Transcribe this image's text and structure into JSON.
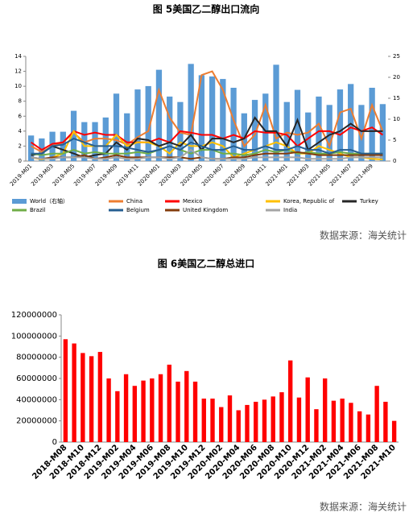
{
  "chart_data": [
    {
      "type": "combo",
      "title": "图 5美国乙二醇出口流向",
      "categories": [
        "2019-M01",
        null,
        "2019-M03",
        null,
        "2019-M05",
        null,
        "2019-M07",
        null,
        "2019-M09",
        null,
        "2019-M11",
        null,
        "2020-M01",
        null,
        "2020-M03",
        null,
        "2020-M05",
        null,
        "2020-M07",
        null,
        "2020-M09",
        null,
        "2020-M11",
        null,
        "2021-M01",
        null,
        "2021-M03",
        null,
        "2021-M05",
        null,
        "2021-M07",
        null,
        "2021-M09",
        null
      ],
      "ylim": [
        0,
        14
      ],
      "yticks": [
        0,
        2,
        4,
        6,
        8,
        10,
        12,
        14
      ],
      "y2lim": [
        0,
        25
      ],
      "y2ticks": [
        0,
        5,
        10,
        15,
        20,
        25
      ],
      "series": [
        {
          "name": "World（右轴）",
          "type": "bar",
          "axis": "y2",
          "color": "#5b9bd5",
          "values": [
            6.1,
            5.4,
            7.0,
            7.0,
            12.0,
            9.3,
            9.3,
            10.4,
            16.1,
            11.4,
            17.1,
            17.9,
            21.8,
            15.4,
            14.1,
            23.2,
            20.5,
            20.2,
            19.6,
            17.5,
            11.4,
            14.6,
            16.1,
            23.0,
            14.1,
            17.0,
            11.6,
            15.4,
            13.4,
            17.1,
            18.4,
            13.4,
            17.5,
            13.6
          ]
        },
        {
          "name": "China",
          "type": "line",
          "color": "#ed7d31",
          "values": [
            2,
            1.2,
            2,
            2.5,
            3.8,
            2.5,
            3,
            3,
            2.8,
            2.2,
            3.2,
            4,
            9.5,
            5.8,
            3.8,
            3.5,
            11.5,
            12,
            9.5,
            5.5,
            2,
            3.5,
            7.5,
            3,
            3.8,
            3.5,
            3.8,
            5,
            2,
            6.5,
            7,
            3,
            7.5,
            4
          ]
        },
        {
          "name": "Mexico",
          "type": "line",
          "color": "#ff0000",
          "values": [
            2.5,
            1.5,
            2.3,
            2.5,
            4,
            3.5,
            3.8,
            3.5,
            3.5,
            2.5,
            2.5,
            2.5,
            3,
            2.5,
            4,
            3.8,
            3.5,
            3.5,
            3,
            3.5,
            3,
            4,
            3.8,
            3.8,
            3.5,
            2,
            3,
            4,
            4,
            3.5,
            4.5,
            4,
            4.5,
            3.5
          ]
        },
        {
          "name": "Korea, Republic of",
          "type": "line",
          "color": "#ffc000",
          "values": [
            0.5,
            0.2,
            0.5,
            1,
            4,
            2,
            2,
            2,
            3.5,
            2,
            2.5,
            2.5,
            2,
            1,
            2.5,
            2,
            2,
            2.5,
            2,
            0.5,
            1,
            1.5,
            2,
            2.5,
            2,
            1,
            1,
            2,
            1.5,
            1,
            0.5,
            0.5,
            0.3,
            0.2
          ]
        },
        {
          "name": "Turkey",
          "type": "line",
          "color": "#262626",
          "values": [
            0.8,
            1,
            2,
            1.5,
            1,
            0.5,
            0.8,
            1,
            2.5,
            1.5,
            3,
            2.8,
            2,
            2.5,
            2,
            3.5,
            1.5,
            3,
            3,
            2.5,
            3,
            5.8,
            4,
            4,
            2,
            5.5,
            1.5,
            2.5,
            3.5,
            4,
            5,
            4,
            4,
            4
          ]
        },
        {
          "name": "Brazil",
          "type": "line",
          "color": "#70ad47",
          "values": [
            1,
            0.8,
            1,
            1,
            1.5,
            1,
            1.2,
            1,
            1,
            1,
            1.2,
            1,
            1.5,
            2,
            1.5,
            1,
            1.5,
            1.5,
            1,
            1,
            0.8,
            1,
            1.5,
            1.2,
            1.5,
            1,
            1.2,
            1,
            1,
            1.2,
            1,
            1,
            1,
            1
          ]
        },
        {
          "name": "Belgium",
          "type": "line",
          "color": "#255e91",
          "values": [
            1,
            1,
            2,
            2.2,
            3,
            2.5,
            2,
            2,
            2,
            1.8,
            1.5,
            1.2,
            1.5,
            2,
            1.5,
            2.5,
            2,
            1.5,
            1.5,
            2,
            1.5,
            1.5,
            2,
            1.5,
            1.5,
            2,
            1.5,
            1.5,
            1,
            1.5,
            1.5,
            1,
            1,
            1
          ]
        },
        {
          "name": "United Kingdom",
          "type": "line",
          "color": "#843c0c",
          "values": [
            0.5,
            0.3,
            0.5,
            0.5,
            0.5,
            0.8,
            0.3,
            0.5,
            0.8,
            0.5,
            0.5,
            0.5,
            0.5,
            0.5,
            0.5,
            0.3,
            0.5,
            0.3,
            0.3,
            0.5,
            0.5,
            0.8,
            1,
            1,
            1,
            1.2,
            1,
            0.8,
            0.8,
            0.8,
            0.8,
            0.8,
            0.8,
            0.8
          ]
        },
        {
          "name": "India",
          "type": "line",
          "color": "#a5a5a5",
          "values": [
            0.5,
            0.3,
            0.3,
            0.5,
            0.5,
            0.5,
            0.3,
            0.3,
            0.5,
            0.3,
            0.3,
            0.5,
            0.5,
            0.3,
            0.5,
            1.5,
            0.5,
            0.3,
            0.3,
            0.3,
            0.3,
            0.5,
            0.5,
            0.5,
            0.5,
            0.5,
            0.3,
            0.3,
            0.3,
            0.3,
            0.5,
            0.5,
            0.5,
            0.5
          ]
        }
      ],
      "source": "数据来源：海关统计"
    },
    {
      "type": "bar",
      "title": "图 6美国乙二醇总进口",
      "categories": [
        "2018-M08",
        null,
        "2018-M10",
        null,
        "2018-M12",
        null,
        "2019-M02",
        null,
        "2019-M04",
        null,
        "2019-M06",
        null,
        "2019-M08",
        null,
        "2019-M10",
        null,
        "2019-M12",
        null,
        "2020-M02",
        null,
        "2020-M04",
        null,
        "2020-M06",
        null,
        "2020-M08",
        null,
        "2020-M10",
        null,
        "2020-M12",
        null,
        "2021-M02",
        null,
        "2021-M04",
        null,
        "2021-M06",
        null,
        "2021-M08",
        null,
        "2021-M10"
      ],
      "values": [
        97000000,
        93000000,
        84000000,
        81000000,
        85000000,
        60000000,
        48000000,
        64000000,
        53000000,
        58000000,
        60000000,
        64000000,
        73000000,
        57000000,
        67000000,
        57000000,
        41000000,
        41000000,
        33000000,
        44000000,
        30000000,
        35000000,
        38000000,
        40000000,
        43000000,
        47000000,
        77000000,
        42000000,
        61000000,
        31000000,
        60000000,
        39000000,
        41000000,
        37000000,
        29000000,
        26000000,
        53000000,
        38000000,
        20000000
      ],
      "color": "#ff0000",
      "ylim": [
        0,
        120000000
      ],
      "yticks": [
        0,
        20000000,
        40000000,
        60000000,
        80000000,
        100000000,
        120000000
      ],
      "source": "数据来源：海关统计"
    }
  ]
}
